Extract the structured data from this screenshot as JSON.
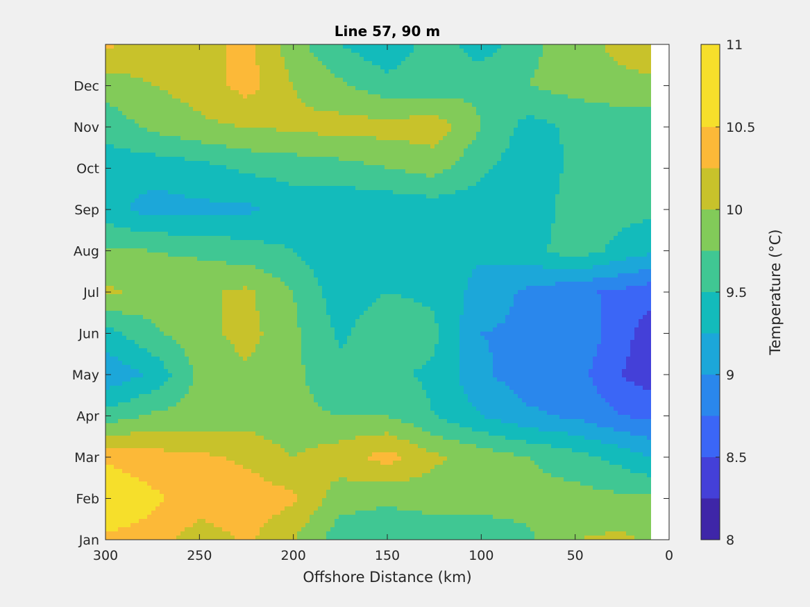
{
  "chart_data": {
    "type": "heatmap",
    "subtype": "filled-contour",
    "title": "Line 57, 90 m",
    "xlabel": "Offshore Distance (km)",
    "ylabel": "",
    "x_reversed": true,
    "xlim": [
      300,
      0
    ],
    "xticks": [
      300,
      250,
      200,
      150,
      100,
      50,
      0
    ],
    "y_categories": [
      "Jan",
      "Feb",
      "Mar",
      "Apr",
      "May",
      "Jun",
      "Jul",
      "Aug",
      "Sep",
      "Oct",
      "Nov",
      "Dec"
    ],
    "ylim": [
      1,
      13
    ],
    "no_data_x_range": [
      10,
      0
    ],
    "colorbar": {
      "label": "Temperature (°C)",
      "range": [
        8,
        11
      ],
      "tick_values": [
        8,
        8.5,
        9,
        9.5,
        10,
        10.5,
        11
      ],
      "tick_labels": [
        "8",
        "8.5",
        "9",
        "9.5",
        "10",
        "10.5",
        "11"
      ],
      "levels": [
        8,
        8.25,
        8.5,
        8.75,
        9,
        9.25,
        9.5,
        9.75,
        10,
        10.25,
        10.5,
        10.75,
        11
      ],
      "colors": [
        "#3e26a8",
        "#4440d8",
        "#3b66f6",
        "#2a87ec",
        "#1ca7d9",
        "#13bbbb",
        "#40c793",
        "#82cb59",
        "#c8c22b",
        "#fcb938",
        "#f6df2b",
        "#f6df2b"
      ]
    },
    "months": [
      1,
      2,
      3,
      4,
      5,
      6,
      7,
      8,
      9,
      10,
      11,
      12,
      13
    ],
    "x": [
      300,
      275,
      250,
      225,
      200,
      175,
      150,
      125,
      100,
      75,
      50,
      25,
      10
    ],
    "values": [
      [
        10.45,
        10.4,
        10.1,
        10.3,
        10.0,
        9.6,
        9.55,
        9.6,
        9.6,
        9.7,
        10.0,
        10.05,
        9.95
      ],
      [
        10.75,
        10.55,
        10.4,
        10.4,
        10.3,
        9.85,
        9.8,
        9.85,
        9.85,
        9.85,
        9.85,
        9.8,
        9.8
      ],
      [
        10.45,
        10.35,
        10.3,
        10.2,
        10.0,
        10.15,
        10.35,
        10.05,
        9.9,
        9.75,
        9.6,
        9.4,
        9.25
      ],
      [
        9.6,
        9.8,
        9.85,
        9.9,
        9.8,
        9.75,
        9.75,
        9.5,
        9.25,
        9.05,
        8.95,
        8.75,
        8.7
      ],
      [
        9.05,
        9.3,
        9.8,
        9.95,
        9.8,
        9.6,
        9.55,
        9.45,
        9.05,
        8.85,
        8.85,
        8.5,
        8.35
      ],
      [
        9.4,
        9.7,
        9.9,
        10.1,
        9.8,
        9.45,
        9.7,
        9.55,
        9.0,
        8.95,
        8.95,
        8.6,
        8.35
      ],
      [
        10.05,
        9.9,
        9.95,
        10.05,
        9.75,
        9.35,
        9.5,
        9.45,
        9.15,
        8.95,
        8.8,
        8.7,
        8.6
      ],
      [
        9.8,
        9.75,
        9.7,
        9.6,
        9.5,
        9.3,
        9.3,
        9.3,
        9.3,
        9.4,
        9.65,
        9.4,
        9.3
      ],
      [
        9.35,
        9.15,
        9.2,
        9.2,
        9.35,
        9.3,
        9.3,
        9.35,
        9.35,
        9.3,
        9.65,
        9.6,
        9.55
      ],
      [
        9.35,
        9.35,
        9.4,
        9.55,
        9.6,
        9.65,
        9.75,
        9.85,
        9.55,
        9.35,
        9.55,
        9.6,
        9.65
      ],
      [
        9.6,
        9.8,
        9.95,
        10.0,
        10.05,
        10.1,
        10.1,
        10.15,
        9.75,
        9.4,
        9.55,
        9.6,
        9.6
      ],
      [
        9.85,
        10.0,
        10.1,
        10.35,
        10.0,
        9.8,
        9.6,
        9.6,
        9.7,
        9.75,
        9.85,
        9.9,
        9.9
      ],
      [
        10.3,
        10.15,
        10.1,
        10.35,
        9.85,
        9.5,
        9.3,
        9.65,
        9.35,
        9.7,
        9.85,
        10.1,
        10.25
      ]
    ]
  }
}
